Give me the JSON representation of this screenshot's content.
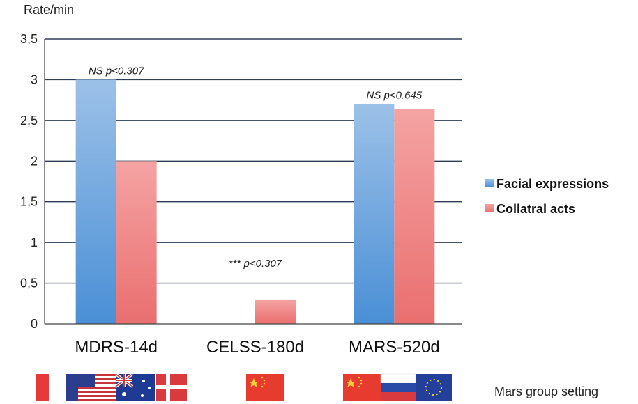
{
  "chart_data": {
    "type": "bar",
    "ylabel": "Rate/min",
    "ylim": [
      0,
      3.5
    ],
    "yticks": [
      "0",
      "0,5",
      "1",
      "1,5",
      "2",
      "2,5",
      "3",
      "3,5"
    ],
    "ytick_values": [
      0,
      0.5,
      1,
      1.5,
      2,
      2.5,
      3,
      3.5
    ],
    "grid": true,
    "categories": [
      "MDRS-14d",
      "CELSS-180d",
      "MARS-520d"
    ],
    "series": [
      {
        "name": "Facial expressions",
        "values": [
          3.0,
          0,
          2.7
        ],
        "color": "#5b9bd5"
      },
      {
        "name": "Collatral acts",
        "values": [
          2.0,
          0.3,
          2.64
        ],
        "color": "#f08585"
      }
    ],
    "annotations": [
      {
        "category": "MDRS-14d",
        "text": "NS p<0.307"
      },
      {
        "category": "CELSS-180d",
        "text": "*** p<0.307"
      },
      {
        "category": "MARS-520d",
        "text": "NS p<0.645"
      }
    ],
    "legend_position": "right",
    "footnote": "Mars group setting",
    "flags": [
      {
        "category": "MDRS-14d",
        "items": [
          "france-flag",
          "usa-flag",
          "australia-flag",
          "denmark-flag"
        ]
      },
      {
        "category": "CELSS-180d",
        "items": [
          "china-flag"
        ]
      },
      {
        "category": "MARS-520d",
        "items": [
          "china-flag",
          "russia-flag",
          "eu-flag"
        ]
      }
    ]
  }
}
